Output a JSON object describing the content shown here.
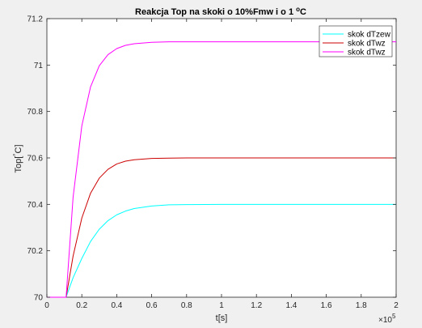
{
  "chart_data": {
    "type": "line",
    "title": "Reakcja Top na skoki o 10%Fmw i o 1 ",
    "title_unit_sup": "o",
    "title_unit": "C",
    "xlabel": "t[s]",
    "ylabel_main": "Top[",
    "ylabel_sup": "°",
    "ylabel_end": "C]",
    "x_exponent_base": "×10",
    "x_exponent_power": "5",
    "xlim": [
      0,
      2
    ],
    "ylim": [
      70,
      71.2
    ],
    "xticks": [
      0,
      0.2,
      0.4,
      0.6,
      0.8,
      1,
      1.2,
      1.4,
      1.6,
      1.8,
      2
    ],
    "xtick_labels": [
      "0",
      "0.2",
      "0.4",
      "0.6",
      "0.8",
      "1",
      "1.2",
      "1.4",
      "1.6",
      "1.8",
      "2"
    ],
    "yticks": [
      70,
      70.2,
      70.4,
      70.6,
      70.8,
      71,
      71.2
    ],
    "ytick_labels": [
      "70",
      "70.2",
      "70.4",
      "70.6",
      "70.8",
      "71",
      "71.2"
    ],
    "grid": false,
    "legend_position": "top-right",
    "series": [
      {
        "name": "skok dTzew",
        "color": "#00ffff",
        "x": [
          0,
          0.1,
          0.11,
          0.15,
          0.2,
          0.25,
          0.3,
          0.35,
          0.4,
          0.45,
          0.5,
          0.6,
          0.7,
          0.8,
          1.0,
          1.2,
          1.4,
          1.6,
          1.8,
          2.0
        ],
        "y": [
          70,
          70,
          70,
          70.084,
          70.167,
          70.24,
          70.293,
          70.33,
          70.355,
          70.371,
          70.382,
          70.393,
          70.398,
          70.399,
          70.4,
          70.4,
          70.4,
          70.4,
          70.4,
          70.4
        ]
      },
      {
        "name": "skok dTwz",
        "color": "#cc0000",
        "x": [
          0,
          0.1,
          0.11,
          0.15,
          0.2,
          0.25,
          0.3,
          0.35,
          0.4,
          0.45,
          0.5,
          0.6,
          0.7,
          0.8,
          1.0,
          1.2,
          1.4,
          1.6,
          1.8,
          2.0
        ],
        "y": [
          70,
          70,
          70,
          70.177,
          70.341,
          70.448,
          70.513,
          70.551,
          70.574,
          70.586,
          70.592,
          70.598,
          70.599,
          70.6,
          70.6,
          70.6,
          70.6,
          70.6,
          70.6,
          70.6
        ]
      },
      {
        "name": "skok dTwz",
        "color": "#ff00ff",
        "x": [
          0,
          0.1,
          0.11,
          0.15,
          0.2,
          0.25,
          0.3,
          0.35,
          0.4,
          0.45,
          0.5,
          0.6,
          0.7,
          0.8,
          1.0,
          1.2,
          1.4,
          1.6,
          1.8,
          2.0
        ],
        "y": [
          70,
          70,
          70,
          70.43,
          70.738,
          70.906,
          70.997,
          71.045,
          71.071,
          71.085,
          71.092,
          71.098,
          71.1,
          71.1,
          71.1,
          71.1,
          71.1,
          71.1,
          71.1,
          71.1
        ]
      }
    ]
  }
}
